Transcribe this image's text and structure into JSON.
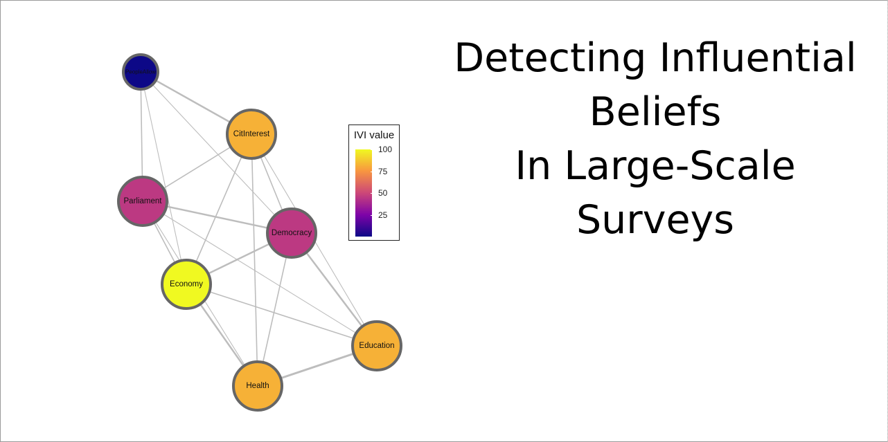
{
  "title": {
    "lines": [
      "Detecting Influential",
      "Beliefs",
      "In Large-Scale",
      "Surveys"
    ]
  },
  "legend": {
    "title": "IVI value",
    "ticks": [
      100,
      75,
      50,
      25
    ],
    "range": [
      0,
      100
    ],
    "colors": [
      "#0d0887",
      "#7e03a8",
      "#cc4778",
      "#f89540",
      "#f0f921"
    ]
  },
  "network": {
    "node_stroke": "#666666",
    "edge_color": "#bdbdbd",
    "nodes": [
      {
        "id": "PeopleAllow",
        "label": "PeopleAllow",
        "ivi": 0
      },
      {
        "id": "CitInterest",
        "label": "CitInterest",
        "ivi": 82
      },
      {
        "id": "Parliament",
        "label": "Parliament",
        "ivi": 45
      },
      {
        "id": "Democracy",
        "label": "Democracy",
        "ivi": 45
      },
      {
        "id": "Economy",
        "label": "Economy",
        "ivi": 100
      },
      {
        "id": "Education",
        "label": "Education",
        "ivi": 82
      },
      {
        "id": "Health",
        "label": "Health",
        "ivi": 82
      }
    ],
    "edges": [
      {
        "source": "PeopleAllow",
        "target": "CitInterest",
        "weight": 2.5
      },
      {
        "source": "PeopleAllow",
        "target": "Parliament",
        "weight": 1.6
      },
      {
        "source": "PeopleAllow",
        "target": "Democracy",
        "weight": 1.1
      },
      {
        "source": "PeopleAllow",
        "target": "Economy",
        "weight": 1.1
      },
      {
        "source": "CitInterest",
        "target": "Parliament",
        "weight": 1.6
      },
      {
        "source": "CitInterest",
        "target": "Democracy",
        "weight": 1.6
      },
      {
        "source": "CitInterest",
        "target": "Economy",
        "weight": 1.6
      },
      {
        "source": "CitInterest",
        "target": "Health",
        "weight": 1.6
      },
      {
        "source": "CitInterest",
        "target": "Education",
        "weight": 1.1
      },
      {
        "source": "Parliament",
        "target": "Democracy",
        "weight": 2.5
      },
      {
        "source": "Parliament",
        "target": "Economy",
        "weight": 1.6
      },
      {
        "source": "Parliament",
        "target": "Health",
        "weight": 1.1
      },
      {
        "source": "Parliament",
        "target": "Education",
        "weight": 1.1
      },
      {
        "source": "Democracy",
        "target": "Economy",
        "weight": 2.5
      },
      {
        "source": "Democracy",
        "target": "Education",
        "weight": 2.5
      },
      {
        "source": "Democracy",
        "target": "Health",
        "weight": 1.6
      },
      {
        "source": "Economy",
        "target": "Health",
        "weight": 2.5
      },
      {
        "source": "Economy",
        "target": "Education",
        "weight": 1.6
      },
      {
        "source": "Health",
        "target": "Education",
        "weight": 3.0
      }
    ]
  }
}
